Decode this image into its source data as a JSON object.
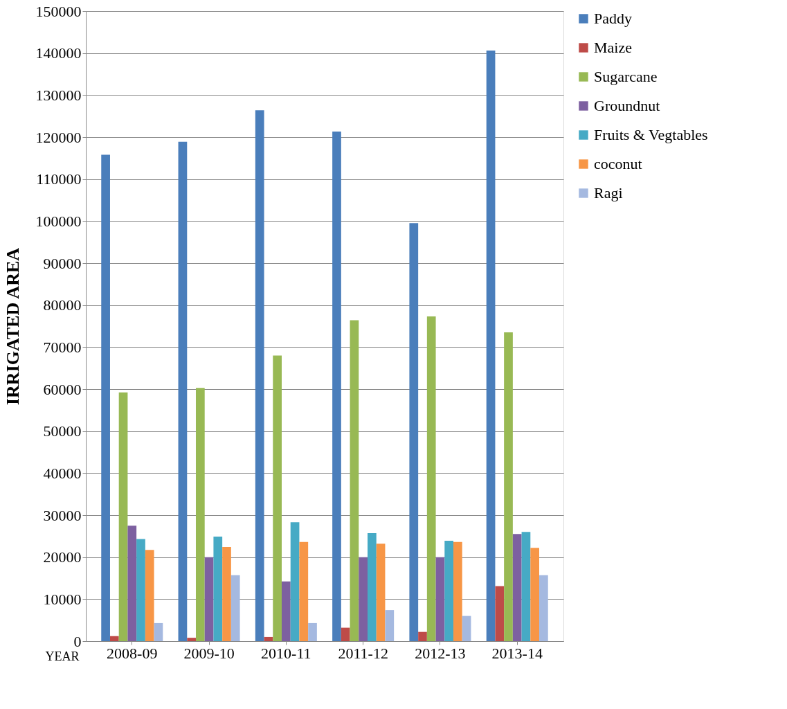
{
  "chart_data": {
    "type": "bar",
    "ylabel": "IRRIGATED AREA",
    "xlabel": "YEAR",
    "categories": [
      "2008-09",
      "2009-10",
      "2010-11",
      "2011-12",
      "2012-13",
      "2013-14"
    ],
    "series": [
      {
        "name": "Paddy",
        "color": "#4a7ebb",
        "values": [
          115800,
          118900,
          126400,
          121300,
          99500,
          140600
        ]
      },
      {
        "name": "Maize",
        "color": "#be4b48",
        "values": [
          1200,
          800,
          1000,
          3200,
          2200,
          13100
        ]
      },
      {
        "name": "Sugarcane",
        "color": "#98b954",
        "values": [
          59200,
          60300,
          68000,
          76400,
          77300,
          73500
        ]
      },
      {
        "name": "Groundnut",
        "color": "#7d60a0",
        "values": [
          27500,
          20000,
          14200,
          20000,
          20000,
          25500
        ]
      },
      {
        "name": "Fruits & Vegtables",
        "color": "#46aac5",
        "values": [
          24300,
          24900,
          28300,
          25700,
          23900,
          26000
        ]
      },
      {
        "name": "coconut",
        "color": "#f79646",
        "values": [
          21700,
          22400,
          23600,
          23200,
          23600,
          22200
        ]
      },
      {
        "name": "Ragi",
        "color": "#a5b9e0",
        "values": [
          4300,
          15700,
          4300,
          7400,
          6000,
          15700
        ]
      }
    ],
    "ylim": [
      0,
      150000
    ],
    "yticks": [
      0,
      10000,
      20000,
      30000,
      40000,
      50000,
      60000,
      70000,
      80000,
      90000,
      100000,
      110000,
      120000,
      130000,
      140000,
      150000
    ],
    "grid": "y",
    "legend": "right"
  }
}
